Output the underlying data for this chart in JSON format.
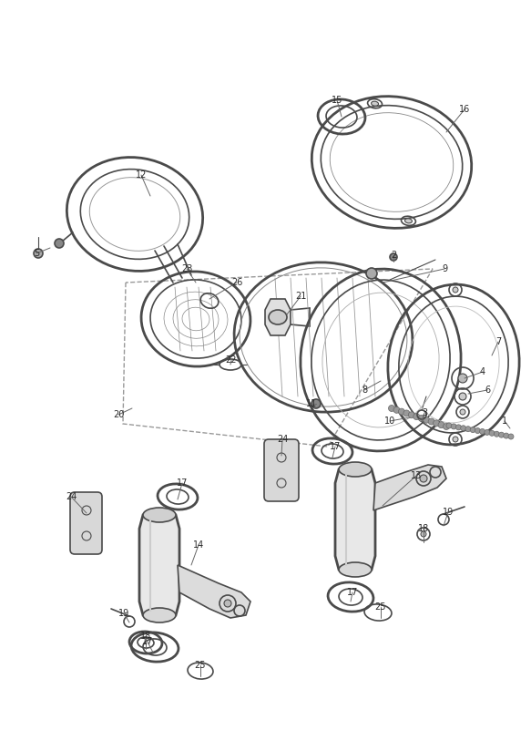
{
  "bg_color": "#f5f5f3",
  "line_color": "#4a4a4a",
  "label_color": "#2a2a2a",
  "fig_width": 5.83,
  "fig_height": 8.24,
  "dpi": 100
}
